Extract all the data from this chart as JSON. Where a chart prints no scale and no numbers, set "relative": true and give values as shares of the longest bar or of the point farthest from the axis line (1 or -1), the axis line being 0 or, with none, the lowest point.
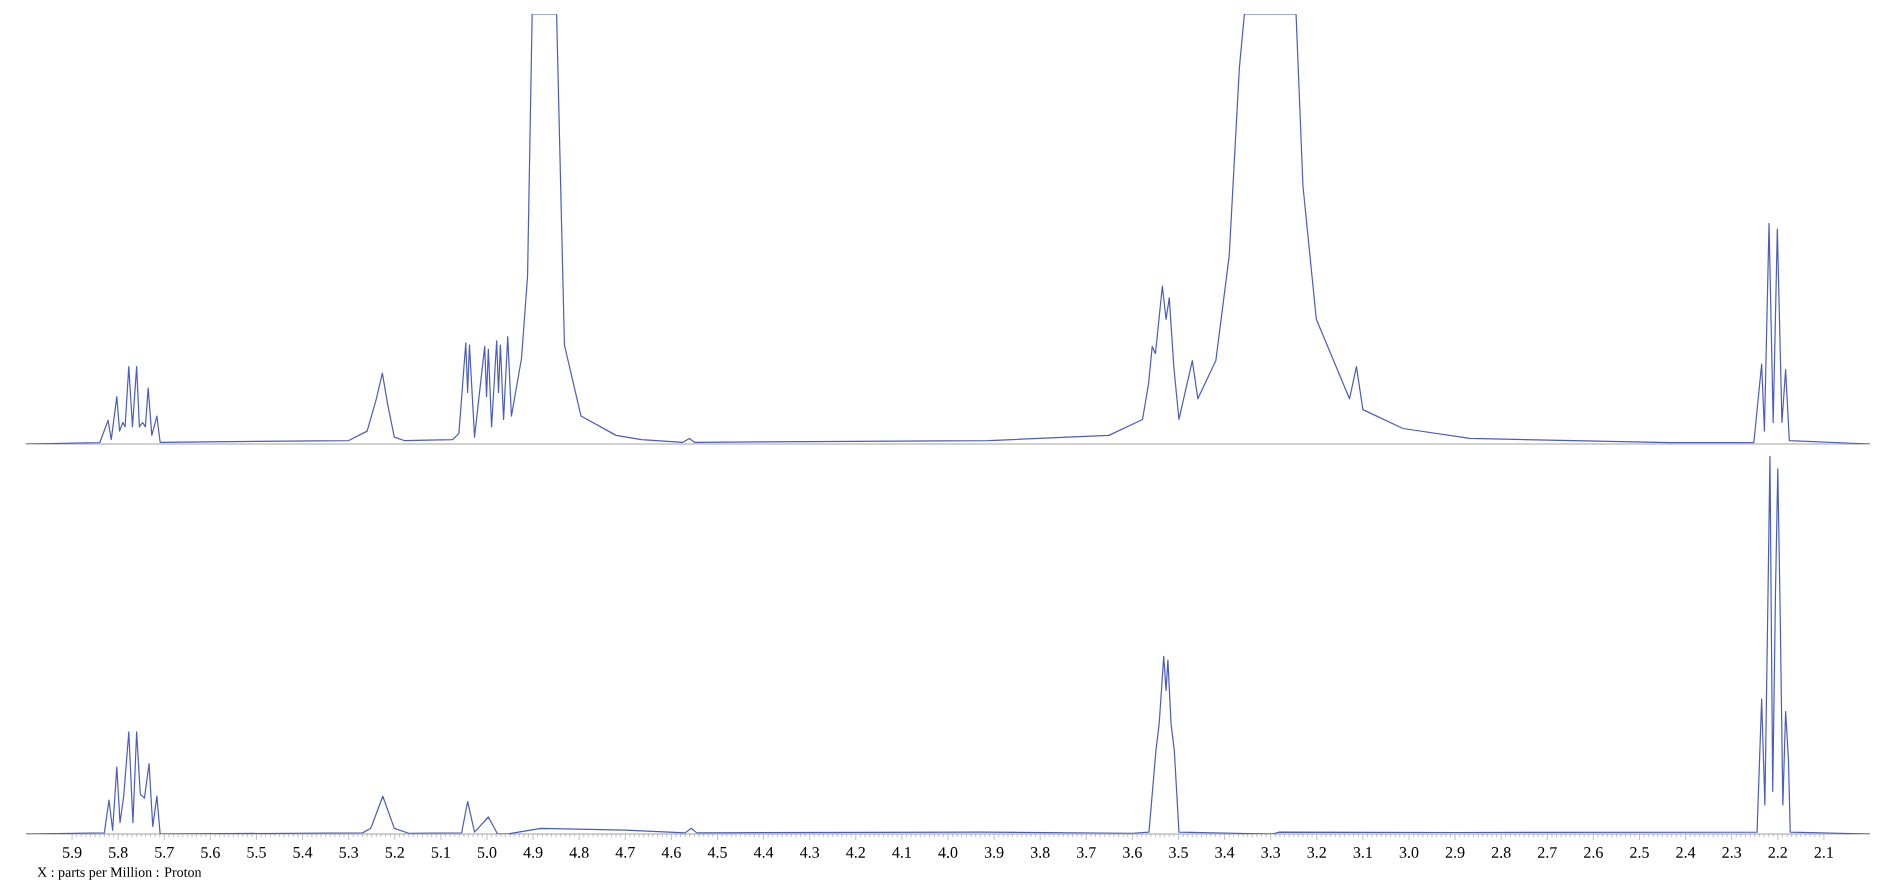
{
  "chart_data": [
    {
      "type": "line",
      "relative": true,
      "color": "#4a5cc0",
      "xlim": [
        6.0,
        2.0
      ],
      "tick_labels": false,
      "x": [
        6.0,
        5.84,
        5.822,
        5.815,
        5.803,
        5.797,
        5.79,
        5.785,
        5.777,
        5.769,
        5.76,
        5.754,
        5.747,
        5.741,
        5.735,
        5.727,
        5.716,
        5.709,
        5.3,
        5.26,
        5.24,
        5.227,
        5.215,
        5.201,
        5.18,
        5.075,
        5.061,
        5.046,
        5.042,
        5.038,
        5.027,
        5.005,
        5.001,
        4.997,
        4.99,
        4.979,
        4.975,
        4.971,
        4.964,
        4.955,
        4.947,
        4.925,
        4.912,
        4.902,
        4.849,
        4.832,
        4.796,
        4.72,
        4.665,
        4.575,
        4.561,
        4.55,
        3.912,
        3.651,
        3.578,
        3.565,
        3.557,
        3.55,
        3.535,
        3.527,
        3.52,
        3.51,
        3.499,
        3.47,
        3.458,
        3.419,
        3.39,
        3.368,
        3.357,
        3.245,
        3.23,
        3.201,
        3.129,
        3.114,
        3.1,
        3.013,
        2.868,
        2.433,
        2.252,
        2.235,
        2.229,
        2.219,
        2.21,
        2.201,
        2.191,
        2.183,
        2.175,
        2.0
      ],
      "values": [
        0,
        0.003,
        0.055,
        0.01,
        0.11,
        0.03,
        0.05,
        0.04,
        0.18,
        0.04,
        0.18,
        0.04,
        0.05,
        0.04,
        0.13,
        0.02,
        0.065,
        0.004,
        0.008,
        0.03,
        0.105,
        0.165,
        0.09,
        0.016,
        0.008,
        0.01,
        0.024,
        0.235,
        0.12,
        0.23,
        0.016,
        0.227,
        0.11,
        0.22,
        0.04,
        0.24,
        0.12,
        0.23,
        0.057,
        0.25,
        0.065,
        0.2,
        0.39,
        1,
        1,
        0.23,
        0.065,
        0.02,
        0.01,
        0.004,
        0.013,
        0.004,
        0.008,
        0.02,
        0.057,
        0.14,
        0.227,
        0.21,
        0.367,
        0.29,
        0.34,
        0.178,
        0.057,
        0.194,
        0.105,
        0.194,
        0.437,
        0.874,
        1,
        1,
        0.6,
        0.29,
        0.105,
        0.18,
        0.08,
        0.036,
        0.013,
        0.003,
        0.003,
        0.186,
        0.03,
        0.513,
        0.05,
        0.5,
        0.05,
        0.173,
        0.008,
        0
      ]
    },
    {
      "type": "line",
      "relative": true,
      "color": "#4a5cc0",
      "xlim": [
        6.0,
        2.0
      ],
      "tick_labels": "x",
      "xlabel": "X : parts per Million : Proton",
      "xticks": [
        5.9,
        5.8,
        5.7,
        5.6,
        5.5,
        5.4,
        5.3,
        5.2,
        5.1,
        {
          "value": 5,
          "label": "5.0"
        },
        4.9,
        4.8,
        4.7,
        4.6,
        4.5,
        4.4,
        4.3,
        4.2,
        4.1,
        {
          "value": 4,
          "label": "4.0"
        },
        3.9,
        3.8,
        3.7,
        3.6,
        3.5,
        3.4,
        3.3,
        3.2,
        3.1,
        {
          "value": 3,
          "label": "3.0"
        },
        2.9,
        2.8,
        2.7,
        2.6,
        2.5,
        2.4,
        2.3,
        2.2,
        2.1
      ],
      "x": [
        6.0,
        5.83,
        5.82,
        5.812,
        5.803,
        5.796,
        5.788,
        5.777,
        5.768,
        5.76,
        5.752,
        5.743,
        5.733,
        5.725,
        5.716,
        5.709,
        5.27,
        5.252,
        5.226,
        5.201,
        5.17,
        5.055,
        5.042,
        5.027,
        4.997,
        4.977,
        4.955,
        4.883,
        4.7,
        4.57,
        4.557,
        4.545,
        3.926,
        3.6,
        3.564,
        3.549,
        3.542,
        3.532,
        3.527,
        3.523,
        3.516,
        3.509,
        3.499,
        3.296,
        3.281,
        2.9,
        2.245,
        2.235,
        2.228,
        2.221,
        2.217,
        2.211,
        2.205,
        2.2,
        2.195,
        2.189,
        2.183,
        2.177,
        2.173,
        2.0
      ],
      "values": [
        0,
        0.003,
        0.09,
        0.01,
        0.177,
        0.03,
        0.1,
        0.27,
        0.03,
        0.27,
        0.105,
        0.095,
        0.186,
        0.02,
        0.1,
        0,
        0.003,
        0.015,
        0.1,
        0.015,
        0.002,
        0.003,
        0.086,
        0.005,
        0.045,
        0,
        0,
        0.015,
        0.01,
        0.003,
        0.015,
        0.003,
        0.005,
        0.002,
        0.005,
        0.22,
        0.29,
        0.47,
        0.38,
        0.46,
        0.29,
        0.22,
        0.005,
        0,
        0.005,
        0.004,
        0.005,
        0.357,
        0.077,
        0.654,
        1,
        0.113,
        0.636,
        0.966,
        0.6,
        0.077,
        0.324,
        0.2,
        0.005,
        0
      ]
    }
  ]
}
